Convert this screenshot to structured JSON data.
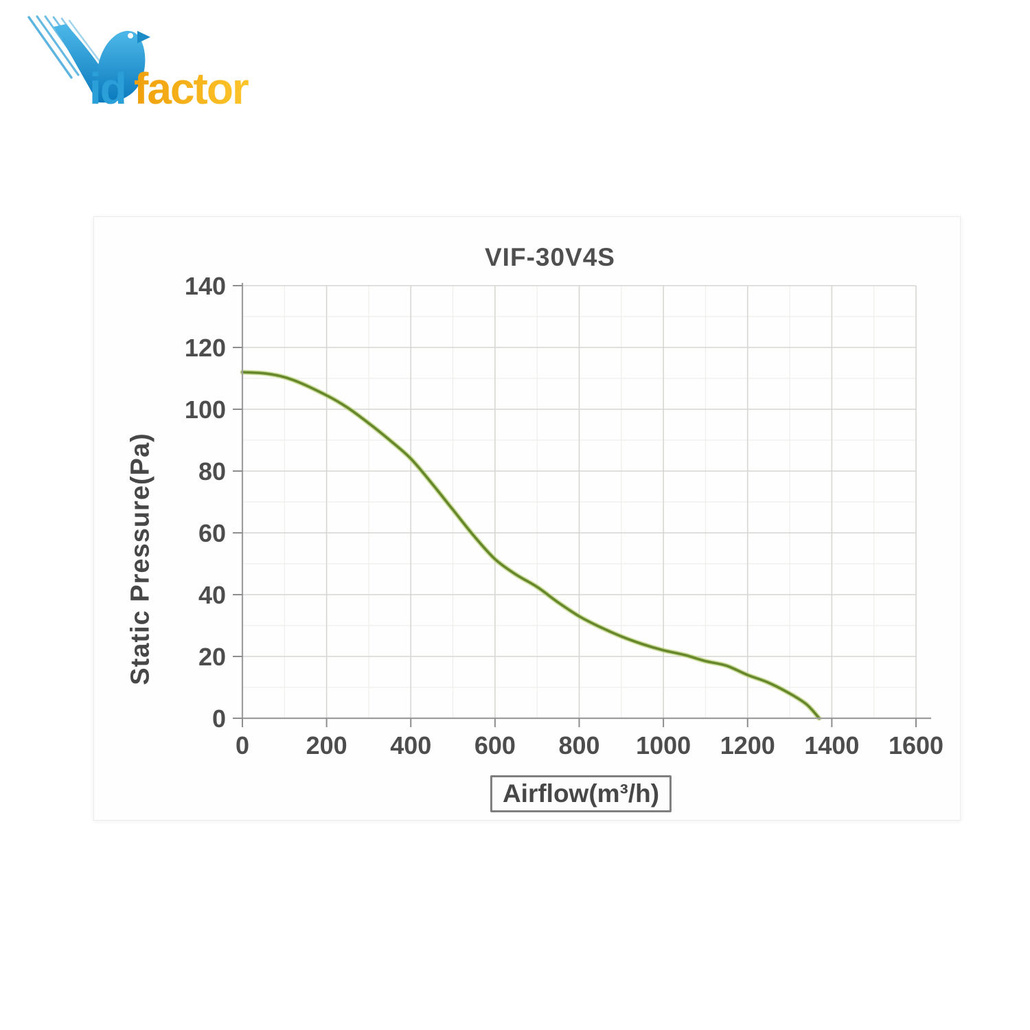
{
  "logo": {
    "text_blue": "id",
    "text_orange": "factor",
    "brand": "Vidfactor",
    "colors": {
      "blue": "#2b9fd8",
      "bird_blue_light": "#4db8e8",
      "bird_blue_dark": "#0a79bd",
      "orange_start": "#efa00b",
      "orange_end": "#fdc52c"
    }
  },
  "chart_data": {
    "type": "line",
    "title": "VIF-30V4S",
    "xlabel": "Airflow(m³/h)",
    "ylabel": "Static Pressure(Pa)",
    "xlim": [
      0,
      1600
    ],
    "ylim": [
      0,
      140
    ],
    "x_ticks": [
      0,
      200,
      400,
      600,
      800,
      1000,
      1200,
      1400,
      1600
    ],
    "y_ticks": [
      0,
      20,
      40,
      60,
      80,
      100,
      120,
      140
    ],
    "x_minor_step": 100,
    "y_minor_step": 10,
    "grid": true,
    "legend": false,
    "series": [
      {
        "name": "VIF-30V4S fan curve",
        "color": "#66872b",
        "halo_color": "#b8ce70",
        "points": [
          [
            0,
            112
          ],
          [
            60,
            111.5
          ],
          [
            120,
            109.5
          ],
          [
            200,
            104.5
          ],
          [
            250,
            100.5
          ],
          [
            300,
            95.5
          ],
          [
            350,
            90
          ],
          [
            400,
            84
          ],
          [
            450,
            76
          ],
          [
            500,
            67.5
          ],
          [
            550,
            59
          ],
          [
            600,
            51.5
          ],
          [
            650,
            46.5
          ],
          [
            700,
            42.5
          ],
          [
            750,
            37.5
          ],
          [
            800,
            33
          ],
          [
            850,
            29.5
          ],
          [
            900,
            26.5
          ],
          [
            950,
            24
          ],
          [
            1000,
            22
          ],
          [
            1050,
            20.5
          ],
          [
            1100,
            18.5
          ],
          [
            1150,
            17
          ],
          [
            1200,
            14
          ],
          [
            1250,
            11.5
          ],
          [
            1300,
            8
          ],
          [
            1340,
            4.5
          ],
          [
            1370,
            0
          ]
        ]
      }
    ]
  }
}
